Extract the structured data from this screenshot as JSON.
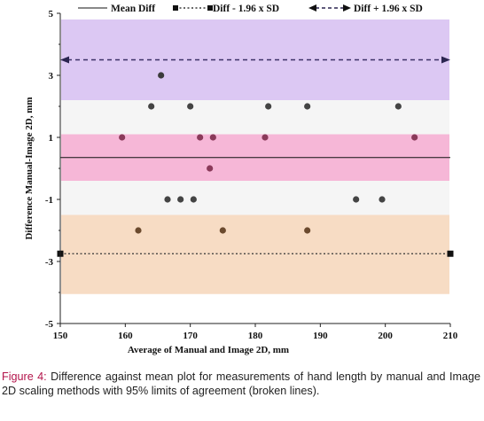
{
  "chart_data": {
    "type": "scatter",
    "xlabel": "Average of Manual and Image 2D, mm",
    "ylabel": "Difference Manual-Image 2D, mm",
    "xlim": [
      150,
      210
    ],
    "ylim": [
      -5,
      5
    ],
    "xticks": [
      150,
      160,
      170,
      180,
      190,
      200,
      210
    ],
    "yticks": [
      -5,
      -3,
      -1,
      1,
      3,
      5
    ],
    "legend": {
      "position": "top",
      "entries": [
        "Mean Diff",
        "Diff - 1.96 x SD",
        "Diff + 1.96 x SD"
      ]
    },
    "lines": {
      "mean_diff": 0.35,
      "lower_limit": -2.75,
      "upper_limit": 3.5
    },
    "bands": [
      {
        "from": 2.2,
        "to": 4.8,
        "color": "#dcc8f3"
      },
      {
        "from": 1.1,
        "to": 2.2,
        "color": "#f5f5f5"
      },
      {
        "from": -0.4,
        "to": 1.1,
        "color": "#f6b7d7"
      },
      {
        "from": -1.5,
        "to": -0.4,
        "color": "#f5f5f5"
      },
      {
        "from": -4.05,
        "to": -1.5,
        "color": "#f7dcc4"
      }
    ],
    "points": [
      {
        "x": 165.5,
        "y": 3
      },
      {
        "x": 164,
        "y": 2
      },
      {
        "x": 170,
        "y": 2
      },
      {
        "x": 182,
        "y": 2
      },
      {
        "x": 188,
        "y": 2
      },
      {
        "x": 202,
        "y": 2
      },
      {
        "x": 159.5,
        "y": 1
      },
      {
        "x": 171.5,
        "y": 1
      },
      {
        "x": 173.5,
        "y": 1
      },
      {
        "x": 181.5,
        "y": 1
      },
      {
        "x": 204.5,
        "y": 1
      },
      {
        "x": 173,
        "y": 0
      },
      {
        "x": 166.5,
        "y": -1
      },
      {
        "x": 168.5,
        "y": -1
      },
      {
        "x": 170.5,
        "y": -1
      },
      {
        "x": 195.5,
        "y": -1
      },
      {
        "x": 199.5,
        "y": -1
      },
      {
        "x": 162,
        "y": -2
      },
      {
        "x": 175,
        "y": -2
      },
      {
        "x": 188,
        "y": -2
      }
    ],
    "colors": {
      "mean_line": "#111111",
      "limit_lines": "#333333",
      "point_fill": "#444444"
    }
  },
  "caption": {
    "label": "Figure 4:",
    "text": " Difference against mean plot for measurements of hand length by manual and Image 2D scaling methods with 95% limits of agreement (broken lines)."
  }
}
